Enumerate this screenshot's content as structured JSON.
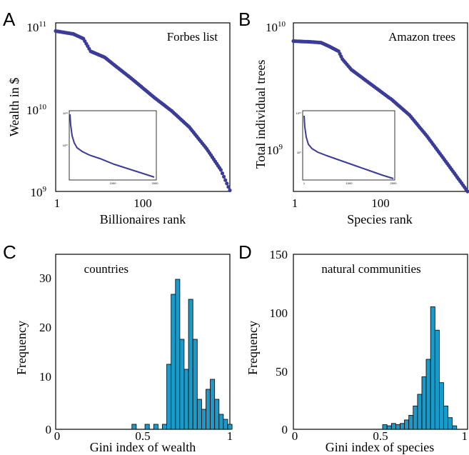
{
  "chart_data": [
    {
      "panel": "A",
      "type": "scatter",
      "title": "Forbes list",
      "xlabel": "Billionaires rank",
      "ylabel": "Wealth in $",
      "x_scale": "log",
      "y_scale": "log",
      "xlim": [
        1,
        1000
      ],
      "ylim": [
        1000000000.0,
        100000000000.0
      ],
      "x_ticks": [
        "1",
        "100"
      ],
      "y_ticks": [
        {
          "base": "10",
          "exp": "11"
        },
        {
          "base": "10",
          "exp": "10"
        },
        {
          "base": "10",
          "exp": "9"
        }
      ],
      "color": "#3b3b98",
      "series_points": [
        [
          1,
          80000000000.0
        ],
        [
          2,
          74000000000.0
        ],
        [
          3,
          65000000000.0
        ],
        [
          4,
          46000000000.0
        ],
        [
          7,
          39000000000.0
        ],
        [
          10,
          32000000000.0
        ],
        [
          20,
          22000000000.0
        ],
        [
          50,
          13000000000.0
        ],
        [
          100,
          9000000000.0
        ],
        [
          200,
          5800000000.0
        ],
        [
          400,
          3200000000.0
        ],
        [
          700,
          1800000000.0
        ],
        [
          1000,
          1030000000.0
        ]
      ],
      "inset": {
        "type": "line",
        "x_ticks": [
          "1000",
          "2000"
        ],
        "xlim": [
          0,
          2000
        ],
        "y_ticks": [
          "10¹¹",
          "10¹⁰"
        ]
      }
    },
    {
      "panel": "B",
      "type": "scatter",
      "title": "Amazon trees",
      "xlabel": "Species rank",
      "ylabel": "Total individual trees",
      "x_scale": "log",
      "y_scale": "log",
      "xlim": [
        1,
        1000
      ],
      "ylim": [
        480000000.0,
        10000000000.0
      ],
      "x_ticks": [
        "1",
        "100"
      ],
      "y_ticks": [
        {
          "base": "10",
          "exp": "10"
        },
        {
          "base": "10",
          "exp": "9"
        }
      ],
      "color": "#3b3b98",
      "series_points": [
        [
          1,
          7200000000.0
        ],
        [
          2,
          7100000000.0
        ],
        [
          3,
          7000000000.0
        ],
        [
          4,
          6600000000.0
        ],
        [
          6,
          6000000000.0
        ],
        [
          7,
          5200000000.0
        ],
        [
          10,
          4300000000.0
        ],
        [
          20,
          3400000000.0
        ],
        [
          50,
          2500000000.0
        ],
        [
          100,
          1900000000.0
        ],
        [
          200,
          1300000000.0
        ],
        [
          400,
          850000000.0
        ],
        [
          700,
          600000000.0
        ],
        [
          1000,
          480000000.0
        ]
      ],
      "inset": {
        "type": "line",
        "x_ticks": [
          "1",
          "1000",
          "2000"
        ],
        "xlim": [
          0,
          2000
        ],
        "y_ticks": [
          "10¹⁰",
          "10⁹"
        ]
      }
    },
    {
      "panel": "C",
      "type": "bar",
      "title": "countries",
      "xlabel": "Gini index of wealth",
      "ylabel": "Frequency",
      "xlim": [
        0,
        1
      ],
      "ylim": [
        0,
        35
      ],
      "x_ticks": [
        "0",
        "0.5",
        "1"
      ],
      "y_ticks": [
        "0",
        "10",
        "20",
        "30"
      ],
      "bin_width": 0.025,
      "color": "#1a9ac9",
      "bins": [
        {
          "x": 0.45,
          "count": 1
        },
        {
          "x": 0.525,
          "count": 1
        },
        {
          "x": 0.575,
          "count": 1
        },
        {
          "x": 0.625,
          "count": 1
        },
        {
          "x": 0.65,
          "count": 13
        },
        {
          "x": 0.675,
          "count": 27
        },
        {
          "x": 0.7,
          "count": 30
        },
        {
          "x": 0.725,
          "count": 18
        },
        {
          "x": 0.75,
          "count": 12
        },
        {
          "x": 0.775,
          "count": 26
        },
        {
          "x": 0.8,
          "count": 18
        },
        {
          "x": 0.825,
          "count": 6
        },
        {
          "x": 0.85,
          "count": 4
        },
        {
          "x": 0.875,
          "count": 8
        },
        {
          "x": 0.9,
          "count": 10
        },
        {
          "x": 0.925,
          "count": 6
        },
        {
          "x": 0.95,
          "count": 3
        },
        {
          "x": 0.975,
          "count": 2
        },
        {
          "x": 1.0,
          "count": 1
        }
      ]
    },
    {
      "panel": "D",
      "type": "bar",
      "title": "natural communities",
      "xlabel": "Gini index of species",
      "ylabel": "Frequency",
      "xlim": [
        0,
        1
      ],
      "ylim": [
        0,
        150
      ],
      "x_ticks": [
        "0",
        "0.5",
        "1"
      ],
      "y_ticks": [
        "0",
        "50",
        "100",
        "150"
      ],
      "bin_width": 0.025,
      "color": "#1a9ac9",
      "bins": [
        {
          "x": 0.525,
          "count": 4
        },
        {
          "x": 0.55,
          "count": 3
        },
        {
          "x": 0.575,
          "count": 5
        },
        {
          "x": 0.6,
          "count": 4
        },
        {
          "x": 0.625,
          "count": 5
        },
        {
          "x": 0.65,
          "count": 8
        },
        {
          "x": 0.675,
          "count": 12
        },
        {
          "x": 0.7,
          "count": 20
        },
        {
          "x": 0.725,
          "count": 30
        },
        {
          "x": 0.75,
          "count": 45
        },
        {
          "x": 0.775,
          "count": 60
        },
        {
          "x": 0.8,
          "count": 105
        },
        {
          "x": 0.825,
          "count": 85
        },
        {
          "x": 0.85,
          "count": 40
        },
        {
          "x": 0.875,
          "count": 20
        },
        {
          "x": 0.9,
          "count": 10
        },
        {
          "x": 0.925,
          "count": 3
        }
      ]
    }
  ]
}
